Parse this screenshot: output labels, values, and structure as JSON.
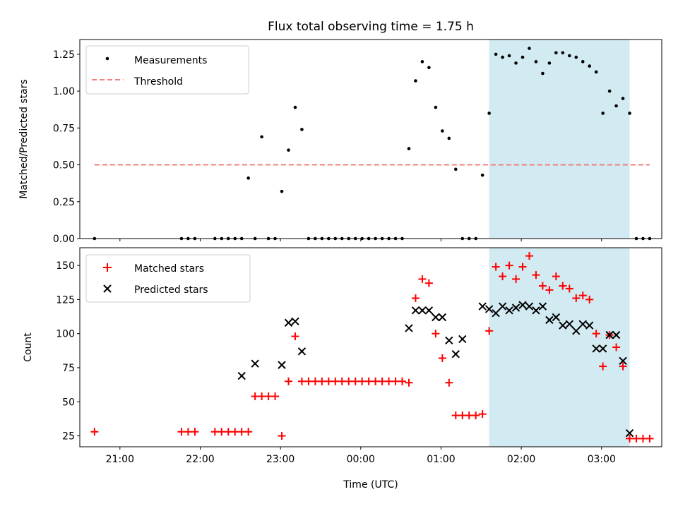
{
  "title": "Flux total observing time = 1.75 h",
  "xlabel": "Time (UTC)",
  "colors": {
    "matched": "#ff0000",
    "predicted": "#000000",
    "threshold": "#f08080",
    "shade": "#add8e6",
    "measurement": "#000000"
  },
  "chart_data": [
    {
      "type": "scatter",
      "ylabel": "Matched/Predicted stars",
      "ylim": [
        0,
        1.35
      ],
      "y_ticks": [
        "0.00",
        "0.25",
        "0.50",
        "0.75",
        "1.00",
        "1.25"
      ],
      "y_tick_values": [
        0,
        0.25,
        0.5,
        0.75,
        1.0,
        1.25
      ],
      "legend": {
        "placement": "top-left",
        "entries": [
          "Measurements",
          "Threshold"
        ]
      },
      "shaded_interval": [
        "01:36",
        "03:21"
      ],
      "threshold": {
        "name": "Threshold",
        "value": 0.5,
        "x_range": [
          "20:41",
          "03:36"
        ]
      },
      "series": [
        {
          "name": "Measurements",
          "marker": "dot",
          "x": [
            "20:41",
            "21:46",
            "21:51",
            "21:56",
            "22:11",
            "22:16",
            "22:21",
            "22:26",
            "22:31",
            "22:36",
            "22:41",
            "22:46",
            "22:51",
            "22:56",
            "23:01",
            "23:06",
            "23:11",
            "23:16",
            "23:21",
            "23:26",
            "23:31",
            "23:36",
            "23:41",
            "23:46",
            "23:51",
            "23:56",
            "00:01",
            "00:06",
            "00:11",
            "00:16",
            "00:21",
            "00:26",
            "00:31",
            "00:36",
            "00:41",
            "00:46",
            "00:51",
            "00:56",
            "01:01",
            "01:06",
            "01:11",
            "01:16",
            "01:21",
            "01:26",
            "01:31",
            "01:36",
            "01:41",
            "01:46",
            "01:51",
            "01:56",
            "02:01",
            "02:06",
            "02:11",
            "02:16",
            "02:21",
            "02:26",
            "02:31",
            "02:36",
            "02:41",
            "02:46",
            "02:51",
            "02:56",
            "03:01",
            "03:06",
            "03:11",
            "03:16",
            "03:21",
            "03:26",
            "03:31",
            "03:36"
          ],
          "y": [
            0,
            0,
            0,
            0,
            0,
            0,
            0,
            0,
            0,
            0.41,
            0,
            0.69,
            0,
            0,
            0.32,
            0.6,
            0.89,
            0.74,
            0,
            0,
            0,
            0,
            0,
            0,
            0,
            0,
            0,
            0,
            0,
            0,
            0,
            0,
            0,
            0.61,
            1.07,
            1.2,
            1.16,
            0.89,
            0.73,
            0.68,
            0.47,
            0,
            0,
            0,
            0.43,
            0.85,
            1.25,
            1.23,
            1.24,
            1.19,
            1.23,
            1.29,
            1.2,
            1.12,
            1.19,
            1.26,
            1.26,
            1.24,
            1.23,
            1.2,
            1.17,
            1.13,
            0.85,
            1.0,
            0.9,
            0.95,
            0.85,
            0,
            0,
            0
          ]
        }
      ]
    },
    {
      "type": "scatter",
      "ylabel": "Count",
      "ylim": [
        17,
        163
      ],
      "y_ticks": [
        "25",
        "50",
        "75",
        "100",
        "125",
        "150"
      ],
      "y_tick_values": [
        25,
        50,
        75,
        100,
        125,
        150
      ],
      "x_ticks": [
        "21:00",
        "22:00",
        "23:00",
        "00:00",
        "01:00",
        "02:00",
        "03:00"
      ],
      "legend": {
        "placement": "top-left",
        "entries": [
          "Matched stars",
          "Predicted stars"
        ]
      },
      "shaded_interval": [
        "01:36",
        "03:21"
      ],
      "series": [
        {
          "name": "Matched stars",
          "marker": "plus",
          "x": [
            "20:41",
            "21:46",
            "21:51",
            "21:56",
            "22:11",
            "22:16",
            "22:21",
            "22:26",
            "22:31",
            "22:36",
            "22:41",
            "22:46",
            "22:51",
            "22:56",
            "23:01",
            "23:06",
            "23:11",
            "23:16",
            "23:21",
            "23:26",
            "23:31",
            "23:36",
            "23:41",
            "23:46",
            "23:51",
            "23:56",
            "00:01",
            "00:06",
            "00:11",
            "00:16",
            "00:21",
            "00:26",
            "00:31",
            "00:36",
            "00:41",
            "00:46",
            "00:51",
            "00:56",
            "01:01",
            "01:06",
            "01:11",
            "01:16",
            "01:21",
            "01:26",
            "01:31",
            "01:36",
            "01:41",
            "01:46",
            "01:51",
            "01:56",
            "02:01",
            "02:06",
            "02:11",
            "02:16",
            "02:21",
            "02:26",
            "02:31",
            "02:36",
            "02:41",
            "02:46",
            "02:51",
            "02:56",
            "03:01",
            "03:06",
            "03:11",
            "03:16",
            "03:21",
            "03:26",
            "03:31",
            "03:36"
          ],
          "y": [
            28,
            28,
            28,
            28,
            28,
            28,
            28,
            28,
            28,
            28,
            54,
            54,
            54,
            54,
            25,
            65,
            98,
            65,
            65,
            65,
            65,
            65,
            65,
            65,
            65,
            65,
            65,
            65,
            65,
            65,
            65,
            65,
            65,
            64,
            126,
            140,
            137,
            100,
            82,
            64,
            40,
            40,
            40,
            40,
            41,
            102,
            149,
            142,
            150,
            140,
            149,
            157,
            143,
            135,
            132,
            142,
            135,
            133,
            126,
            128,
            125,
            100,
            76,
            99,
            90,
            76,
            23,
            23,
            23,
            23
          ]
        },
        {
          "name": "Predicted stars",
          "marker": "x",
          "x": [
            "22:31",
            "22:41",
            "23:01",
            "23:06",
            "23:11",
            "23:16",
            "00:36",
            "00:41",
            "00:46",
            "00:51",
            "00:56",
            "01:01",
            "01:06",
            "01:11",
            "01:16",
            "01:31",
            "01:36",
            "01:41",
            "01:46",
            "01:51",
            "01:56",
            "02:01",
            "02:06",
            "02:11",
            "02:16",
            "02:21",
            "02:26",
            "02:31",
            "02:36",
            "02:41",
            "02:46",
            "02:51",
            "02:56",
            "03:01",
            "03:06",
            "03:11",
            "03:16",
            "03:21"
          ],
          "y": [
            69,
            78,
            77,
            108,
            109,
            87,
            104,
            117,
            117,
            117,
            112,
            112,
            95,
            85,
            96,
            120,
            118,
            115,
            120,
            117,
            119,
            121,
            120,
            117,
            120,
            110,
            112,
            106,
            107,
            102,
            107,
            106,
            89,
            89,
            99,
            99,
            80,
            27
          ]
        }
      ]
    }
  ]
}
